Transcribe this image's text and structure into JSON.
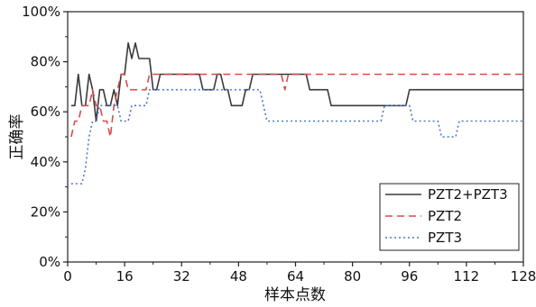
{
  "chart_data": {
    "type": "line",
    "title": "",
    "xlabel": "样本点数",
    "ylabel": "正确率",
    "xlim": [
      0,
      128
    ],
    "ylim": [
      0,
      100
    ],
    "x_ticks": [
      0,
      16,
      32,
      48,
      64,
      80,
      96,
      112,
      128
    ],
    "x_tick_labels": [
      "0",
      "16",
      "32",
      "48",
      "64",
      "80",
      "96",
      "112",
      "128"
    ],
    "y_ticks": [
      0,
      20,
      40,
      60,
      80,
      100
    ],
    "y_tick_labels": [
      "0%",
      "20%",
      "40%",
      "60%",
      "80%",
      "100%"
    ],
    "grid": false,
    "legend_position": "bottom-right",
    "series": [
      {
        "name": "PZT2+PZT3",
        "color": "#3a3a3a",
        "dash": "solid",
        "points": [
          [
            1,
            62.5
          ],
          [
            2,
            62.5
          ],
          [
            3,
            75
          ],
          [
            4,
            62.5
          ],
          [
            5,
            62.5
          ],
          [
            6,
            75
          ],
          [
            7,
            68.8
          ],
          [
            8,
            56.3
          ],
          [
            9,
            68.8
          ],
          [
            10,
            68.8
          ],
          [
            11,
            62.5
          ],
          [
            12,
            62.5
          ],
          [
            13,
            68.8
          ],
          [
            14,
            62.5
          ],
          [
            15,
            75
          ],
          [
            16,
            75
          ],
          [
            17,
            87.5
          ],
          [
            18,
            81.3
          ],
          [
            19,
            87.5
          ],
          [
            20,
            81.3
          ],
          [
            21,
            81.3
          ],
          [
            22,
            81.3
          ],
          [
            23,
            81.3
          ],
          [
            24,
            68.8
          ],
          [
            25,
            68.8
          ],
          [
            26,
            75
          ],
          [
            37,
            75
          ],
          [
            38,
            68.8
          ],
          [
            41,
            68.8
          ],
          [
            42,
            75
          ],
          [
            43,
            75
          ],
          [
            44,
            68.8
          ],
          [
            45,
            68.8
          ],
          [
            46,
            62.5
          ],
          [
            49,
            62.5
          ],
          [
            50,
            68.8
          ],
          [
            51,
            68.8
          ],
          [
            52,
            75
          ],
          [
            67,
            75
          ],
          [
            68,
            68.8
          ],
          [
            73,
            68.8
          ],
          [
            74,
            62.5
          ],
          [
            95,
            62.5
          ],
          [
            96,
            68.8
          ],
          [
            128,
            68.8
          ]
        ]
      },
      {
        "name": "PZT2",
        "color": "#d94b4b",
        "dash": "dashed",
        "points": [
          [
            1,
            50
          ],
          [
            2,
            56.3
          ],
          [
            3,
            56.3
          ],
          [
            4,
            62.5
          ],
          [
            6,
            62.5
          ],
          [
            7,
            68.8
          ],
          [
            8,
            62.5
          ],
          [
            9,
            62.5
          ],
          [
            10,
            56.3
          ],
          [
            11,
            56.3
          ],
          [
            12,
            50
          ],
          [
            13,
            62.5
          ],
          [
            14,
            68.8
          ],
          [
            15,
            75
          ],
          [
            16,
            75
          ],
          [
            17,
            68.8
          ],
          [
            22,
            68.8
          ],
          [
            23,
            75
          ],
          [
            60,
            75
          ],
          [
            61,
            68.8
          ],
          [
            62,
            75
          ],
          [
            128,
            75
          ]
        ]
      },
      {
        "name": "PZT3",
        "color": "#4a78c8",
        "dash": "dotted",
        "points": [
          [
            1,
            31.3
          ],
          [
            4,
            31.3
          ],
          [
            5,
            37.5
          ],
          [
            6,
            50
          ],
          [
            7,
            56.3
          ],
          [
            8,
            56.3
          ],
          [
            9,
            62.5
          ],
          [
            14,
            62.5
          ],
          [
            15,
            56.3
          ],
          [
            17,
            56.3
          ],
          [
            18,
            62.5
          ],
          [
            22,
            62.5
          ],
          [
            23,
            68.8
          ],
          [
            54,
            68.8
          ],
          [
            55,
            62.5
          ],
          [
            56,
            56.3
          ],
          [
            88,
            56.3
          ],
          [
            89,
            62.5
          ],
          [
            96,
            62.5
          ],
          [
            97,
            56.3
          ],
          [
            104,
            56.3
          ],
          [
            105,
            50
          ],
          [
            109,
            50
          ],
          [
            110,
            56.3
          ],
          [
            128,
            56.3
          ]
        ]
      }
    ]
  }
}
